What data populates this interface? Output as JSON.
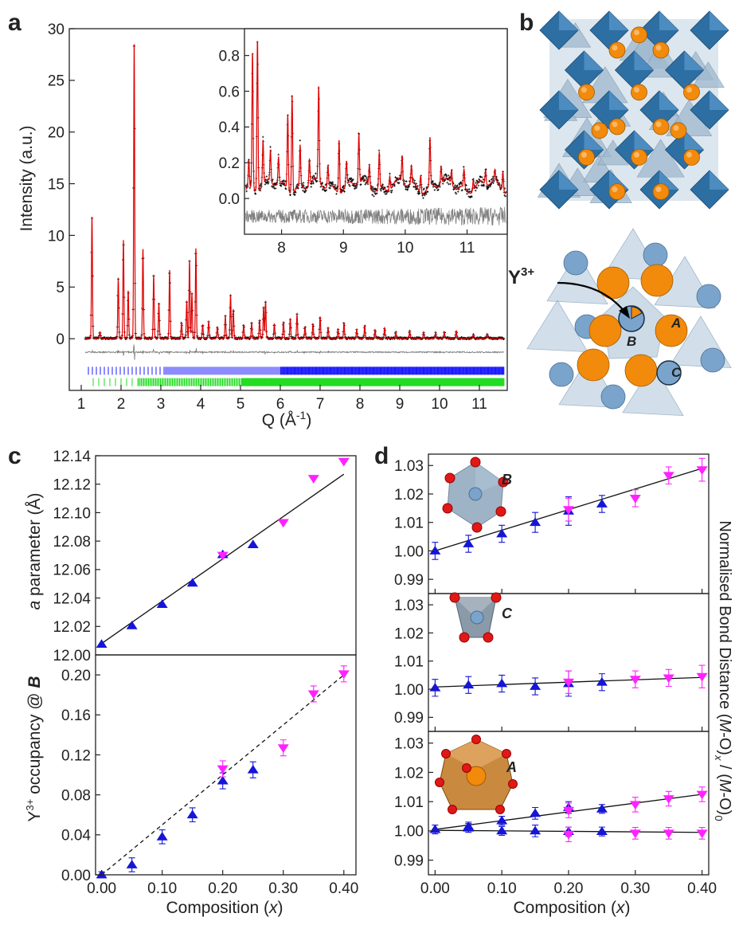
{
  "colors": {
    "observed": "#000000",
    "calculated": "#e00000",
    "difference": "#808080",
    "ticks_phase1": "#1a1aff",
    "ticks_phase2": "#22dd22",
    "series_up": "#1515d8",
    "series_down": "#ff22ff",
    "tet_blue": "#2d6ea3",
    "tet_light": "#9fb9cf",
    "sphere_orange": "#f28a0c",
    "sphere_blue": "#7aa4cc"
  },
  "panels": {
    "a": {
      "label": "a"
    },
    "b": {
      "label": "b",
      "y3_label_main": "Y",
      "y3_label_sup": "3+",
      "site_a": "A",
      "site_b": "B",
      "site_c": "C"
    },
    "c": {
      "label": "c"
    },
    "d": {
      "label": "d",
      "site_b": "B",
      "site_c": "C",
      "site_a": "A"
    }
  },
  "chart_data": [
    {
      "id": "a_main",
      "type": "line",
      "xlabel_main": "Q (Å",
      "xlabel_sup": "-1",
      "xlabel_end": ")",
      "ylabel": "Intensity (a.u.)",
      "xlim": [
        0.7,
        11.7
      ],
      "ylim": [
        -5,
        30
      ],
      "xticks": [
        1,
        2,
        3,
        4,
        5,
        6,
        7,
        8,
        9,
        10,
        11
      ],
      "xtick_labels": [
        "1",
        "2",
        "3",
        "4",
        "5",
        "6",
        "7",
        "8",
        "9",
        "10",
        "11"
      ],
      "yticks": [
        0,
        5,
        10,
        15,
        20,
        25,
        30
      ],
      "ytick_labels": [
        "0",
        "5",
        "10",
        "15",
        "20",
        "25",
        "30"
      ],
      "baseline": 0.05,
      "difference_offset": -1.3,
      "tick_row1_y": -3.1,
      "tick_row2_y": -4.2,
      "peaks": [
        {
          "q": 1.27,
          "h": 11.8
        },
        {
          "q": 1.47,
          "h": 0.6
        },
        {
          "q": 1.93,
          "h": 5.8
        },
        {
          "q": 2.06,
          "h": 9.5
        },
        {
          "q": 2.18,
          "h": 4.6
        },
        {
          "q": 2.33,
          "h": 28.8
        },
        {
          "q": 2.55,
          "h": 8.7
        },
        {
          "q": 2.82,
          "h": 6.1
        },
        {
          "q": 2.95,
          "h": 3.4
        },
        {
          "q": 3.22,
          "h": 6.6
        },
        {
          "q": 3.52,
          "h": 1.5
        },
        {
          "q": 3.65,
          "h": 3.6
        },
        {
          "q": 3.72,
          "h": 7.5
        },
        {
          "q": 3.78,
          "h": 4.3
        },
        {
          "q": 3.88,
          "h": 8.7
        },
        {
          "q": 4.05,
          "h": 1.3
        },
        {
          "q": 4.2,
          "h": 1.6
        },
        {
          "q": 4.42,
          "h": 1.1
        },
        {
          "q": 4.62,
          "h": 2.1
        },
        {
          "q": 4.75,
          "h": 4.2
        },
        {
          "q": 4.82,
          "h": 2.8
        },
        {
          "q": 5.08,
          "h": 1.3
        },
        {
          "q": 5.28,
          "h": 1.5
        },
        {
          "q": 5.48,
          "h": 1.8
        },
        {
          "q": 5.58,
          "h": 3.0
        },
        {
          "q": 5.63,
          "h": 3.6
        },
        {
          "q": 5.85,
          "h": 1.4
        },
        {
          "q": 6.08,
          "h": 1.6
        },
        {
          "q": 6.25,
          "h": 1.9
        },
        {
          "q": 6.42,
          "h": 2.3
        },
        {
          "q": 6.62,
          "h": 1.1
        },
        {
          "q": 6.82,
          "h": 1.4
        },
        {
          "q": 7.0,
          "h": 2.1
        },
        {
          "q": 7.2,
          "h": 1.0
        },
        {
          "q": 7.45,
          "h": 0.9
        },
        {
          "q": 7.6,
          "h": 1.5
        },
        {
          "q": 7.92,
          "h": 0.8
        },
        {
          "q": 8.12,
          "h": 1.2
        },
        {
          "q": 8.38,
          "h": 0.8
        },
        {
          "q": 8.62,
          "h": 1.0
        },
        {
          "q": 8.9,
          "h": 0.6
        },
        {
          "q": 9.25,
          "h": 0.7
        },
        {
          "q": 9.6,
          "h": 0.6
        },
        {
          "q": 9.9,
          "h": 0.5
        },
        {
          "q": 10.12,
          "h": 0.6
        },
        {
          "q": 10.42,
          "h": 0.7
        },
        {
          "q": 10.85,
          "h": 0.4
        },
        {
          "q": 11.2,
          "h": 0.4
        }
      ]
    },
    {
      "id": "a_inset",
      "type": "line",
      "xlim": [
        7.4,
        11.65
      ],
      "ylim": [
        -0.2,
        0.95
      ],
      "xticks": [
        8,
        9,
        10,
        11
      ],
      "xtick_labels": [
        "8",
        "9",
        "10",
        "11"
      ],
      "yticks": [
        0.0,
        0.2,
        0.4,
        0.6,
        0.8
      ],
      "ytick_labels": [
        "0.0",
        "0.2",
        "0.4",
        "0.6",
        "0.8"
      ],
      "baseline": 0.07,
      "difference_offset": -0.1,
      "peaks": [
        {
          "q": 7.47,
          "h": 0.15
        },
        {
          "q": 7.53,
          "h": 0.76
        },
        {
          "q": 7.61,
          "h": 0.85
        },
        {
          "q": 7.7,
          "h": 0.25
        },
        {
          "q": 7.82,
          "h": 0.18
        },
        {
          "q": 7.95,
          "h": 0.15
        },
        {
          "q": 8.1,
          "h": 0.42
        },
        {
          "q": 8.17,
          "h": 0.55
        },
        {
          "q": 8.3,
          "h": 0.23
        },
        {
          "q": 8.45,
          "h": 0.15
        },
        {
          "q": 8.6,
          "h": 0.53
        },
        {
          "q": 8.75,
          "h": 0.12
        },
        {
          "q": 8.93,
          "h": 0.3
        },
        {
          "q": 9.05,
          "h": 0.13
        },
        {
          "q": 9.25,
          "h": 0.28
        },
        {
          "q": 9.42,
          "h": 0.12
        },
        {
          "q": 9.58,
          "h": 0.2
        },
        {
          "q": 9.75,
          "h": 0.08
        },
        {
          "q": 9.95,
          "h": 0.15
        },
        {
          "q": 10.1,
          "h": 0.1
        },
        {
          "q": 10.25,
          "h": 0.1
        },
        {
          "q": 10.4,
          "h": 0.27
        },
        {
          "q": 10.58,
          "h": 0.1
        },
        {
          "q": 10.75,
          "h": 0.08
        },
        {
          "q": 10.95,
          "h": 0.1
        },
        {
          "q": 11.1,
          "h": 0.06
        },
        {
          "q": 11.3,
          "h": 0.08
        },
        {
          "q": 11.45,
          "h": 0.06
        },
        {
          "q": 11.58,
          "h": 0.11
        }
      ]
    },
    {
      "id": "c_top",
      "type": "scatter",
      "ylabel_italic": "a",
      "ylabel_rest": " parameter (Å)",
      "xlim": [
        -0.01,
        0.42
      ],
      "ylim": [
        12.0,
        12.14
      ],
      "yticks": [
        12.0,
        12.02,
        12.04,
        12.06,
        12.08,
        12.1,
        12.12,
        12.14
      ],
      "ytick_labels": [
        "12.00",
        "12.02",
        "12.04",
        "12.06",
        "12.08",
        "12.10",
        "12.12",
        "12.14"
      ],
      "fit_line": [
        [
          0.0,
          12.008
        ],
        [
          0.4,
          12.127
        ]
      ],
      "series": [
        {
          "marker": "up",
          "x": [
            0.0,
            0.05,
            0.1,
            0.15,
            0.2,
            0.25
          ],
          "y": [
            12.0075,
            12.0205,
            12.0355,
            12.0505,
            12.0705,
            12.0775
          ]
        },
        {
          "marker": "down",
          "x": [
            0.2,
            0.3,
            0.35,
            0.4
          ],
          "y": [
            12.07,
            12.093,
            12.124,
            12.136
          ]
        }
      ]
    },
    {
      "id": "c_bottom",
      "type": "scatter",
      "ylabel_main": "Y",
      "ylabel_sup": "3+",
      "ylabel_rest": " occupancy @ ",
      "ylabel_site": "B",
      "xlabel_main": "Composition (",
      "xlabel_var": "x",
      "xlabel_end": ")",
      "xlim": [
        -0.01,
        0.42
      ],
      "ylim": [
        0.0,
        0.22
      ],
      "xticks": [
        0.0,
        0.1,
        0.2,
        0.3,
        0.4
      ],
      "xtick_labels": [
        "0.00",
        "0.10",
        "0.20",
        "0.30",
        "0.40"
      ],
      "yticks": [
        0.0,
        0.04,
        0.08,
        0.12,
        0.16,
        0.2
      ],
      "ytick_labels": [
        "0.00",
        "0.04",
        "0.08",
        "0.12",
        "0.16",
        "0.20"
      ],
      "dashed_line": [
        [
          0.0,
          0.0
        ],
        [
          0.4,
          0.2
        ]
      ],
      "series": [
        {
          "marker": "up",
          "x": [
            0.0,
            0.05,
            0.1,
            0.15,
            0.2,
            0.25
          ],
          "y": [
            0.0,
            0.01,
            0.038,
            0.06,
            0.094,
            0.105
          ],
          "err": [
            0.003,
            0.007,
            0.007,
            0.007,
            0.008,
            0.008
          ]
        },
        {
          "marker": "down",
          "x": [
            0.2,
            0.3,
            0.35,
            0.4
          ],
          "y": [
            0.106,
            0.127,
            0.181,
            0.201
          ],
          "err": [
            0.008,
            0.008,
            0.008,
            0.008
          ]
        }
      ]
    },
    {
      "id": "d_B",
      "type": "scatter",
      "xlim": [
        -0.01,
        0.41
      ],
      "ylim": [
        0.985,
        1.034
      ],
      "yticks": [
        0.99,
        1.0,
        1.01,
        1.02,
        1.03
      ],
      "ytick_labels": [
        "0.99",
        "1.00",
        "1.01",
        "1.02",
        "1.03"
      ],
      "fit_lines": [
        [
          [
            0.0,
            1.0
          ],
          [
            0.4,
            1.029
          ]
        ]
      ],
      "series": [
        {
          "marker": "up",
          "x": [
            0.0,
            0.05,
            0.1,
            0.15,
            0.2,
            0.25
          ],
          "y": [
            1.0,
            1.0025,
            1.006,
            1.01,
            1.014,
            1.0165
          ],
          "err": [
            0.003,
            0.003,
            0.003,
            0.0035,
            0.005,
            0.003
          ]
        },
        {
          "marker": "down",
          "x": [
            0.2,
            0.3,
            0.35,
            0.4
          ],
          "y": [
            1.0145,
            1.0185,
            1.0265,
            1.0285
          ],
          "err": [
            0.004,
            0.003,
            0.003,
            0.004
          ]
        }
      ]
    },
    {
      "id": "d_C",
      "type": "scatter",
      "ylabel_main": "Normalised Bond Distance (",
      "ylabel_m": "M",
      "ylabel_o": "-O)",
      "ylabel_subx": "x",
      "ylabel_mid": " / (",
      "ylabel_m2": "M",
      "ylabel_o2": "-O)",
      "ylabel_sub0": "0",
      "xlim": [
        -0.01,
        0.41
      ],
      "ylim": [
        0.985,
        1.034
      ],
      "yticks": [
        0.99,
        1.0,
        1.01,
        1.02,
        1.03
      ],
      "ytick_labels": [
        "0.99",
        "1.00",
        "1.01",
        "1.02",
        "1.03"
      ],
      "fit_lines": [
        [
          [
            0.0,
            1.0008
          ],
          [
            0.4,
            1.0042
          ]
        ]
      ],
      "series": [
        {
          "marker": "up",
          "x": [
            0.0,
            0.05,
            0.1,
            0.15,
            0.2,
            0.25
          ],
          "y": [
            1.0005,
            1.0015,
            1.002,
            1.001,
            1.002,
            1.0025
          ],
          "err": [
            0.003,
            0.003,
            0.003,
            0.003,
            0.0045,
            0.003
          ]
        },
        {
          "marker": "down",
          "x": [
            0.2,
            0.3,
            0.35,
            0.4
          ],
          "y": [
            1.0025,
            1.0035,
            1.004,
            1.0045
          ],
          "err": [
            0.004,
            0.003,
            0.003,
            0.004
          ]
        }
      ]
    },
    {
      "id": "d_A",
      "type": "scatter",
      "xlabel_main": "Composition (",
      "xlabel_var": "x",
      "xlabel_end": ")",
      "xlim": [
        -0.01,
        0.41
      ],
      "ylim": [
        0.985,
        1.034
      ],
      "xticks": [
        0.0,
        0.1,
        0.2,
        0.3,
        0.4
      ],
      "xtick_labels": [
        "0.00",
        "0.10",
        "0.20",
        "0.30",
        "0.40"
      ],
      "yticks": [
        0.99,
        1.0,
        1.01,
        1.02,
        1.03
      ],
      "ytick_labels": [
        "0.99",
        "1.00",
        "1.01",
        "1.02",
        "1.03"
      ],
      "fit_lines": [
        [
          [
            0.0,
            1.0005
          ],
          [
            0.4,
            1.0125
          ]
        ],
        [
          [
            0.0,
            1.0002
          ],
          [
            0.4,
            0.9995
          ]
        ]
      ],
      "series": [
        {
          "marker": "up",
          "x": [
            0.0,
            0.05,
            0.1,
            0.15,
            0.2,
            0.25,
            0.05,
            0.1,
            0.15,
            0.2,
            0.25
          ],
          "y": [
            1.0005,
            1.0015,
            1.0035,
            1.006,
            1.008,
            1.0075,
            1.001,
            1.0,
            1.0,
            0.9998,
            0.9998
          ],
          "err": [
            0.0015,
            0.0015,
            0.0015,
            0.002,
            0.002,
            0.0015,
            0.0015,
            0.0015,
            0.002,
            0.0015,
            0.0015
          ]
        },
        {
          "marker": "down",
          "x": [
            0.2,
            0.3,
            0.35,
            0.4,
            0.2,
            0.3,
            0.35,
            0.4
          ],
          "y": [
            1.007,
            1.009,
            1.011,
            1.0125,
            0.9988,
            0.9992,
            0.9992,
            0.9992
          ],
          "err": [
            0.0025,
            0.0025,
            0.0025,
            0.0025,
            0.0025,
            0.002,
            0.002,
            0.002
          ]
        }
      ]
    }
  ]
}
